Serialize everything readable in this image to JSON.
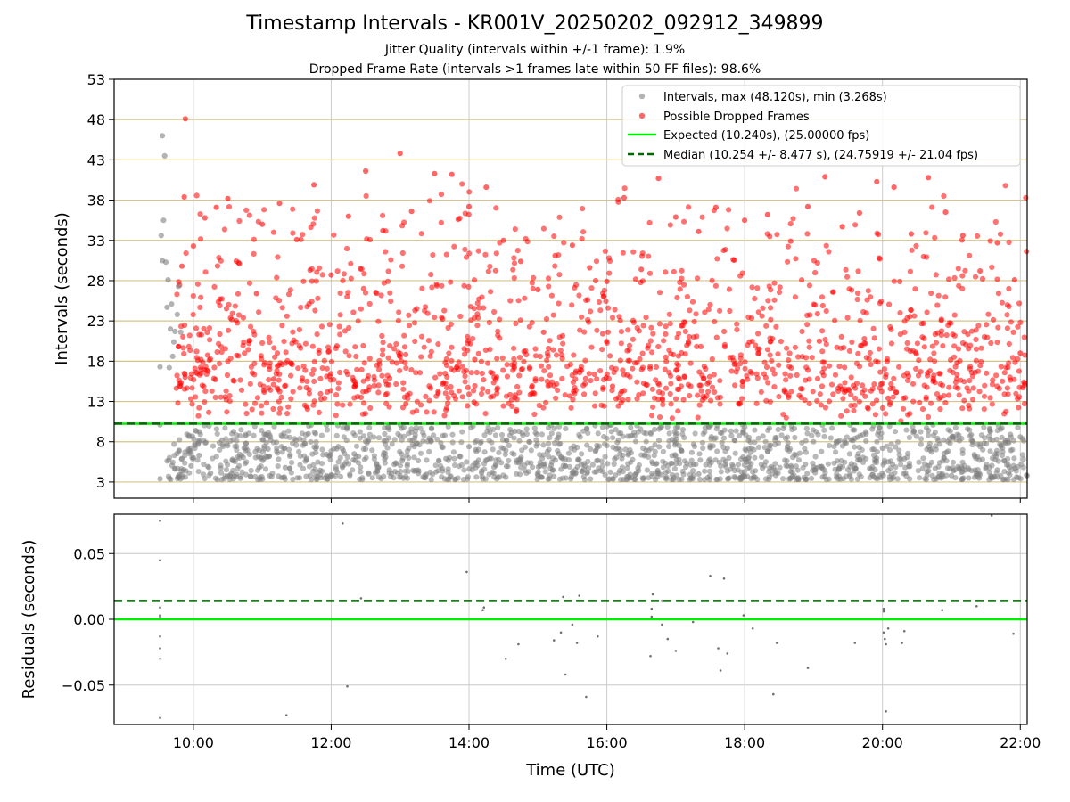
{
  "chart_data": [
    {
      "type": "scatter",
      "title": "Timestamp Intervals - KR001V_20250202_092912_349899",
      "subtitle_1": "Jitter Quality (intervals within +/-1 frame): 1.9%",
      "subtitle_2": "Dropped Frame Rate (intervals >1 frames late within 50 FF files): 98.6%",
      "ylabel": "Intervals (seconds)",
      "xlabel": "Time (UTC)",
      "xlim": [
        "08:51",
        "22:06"
      ],
      "ylim": [
        1,
        53
      ],
      "yticks": [
        "3",
        "8",
        "13",
        "18",
        "23",
        "28",
        "33",
        "38",
        "43",
        "48",
        "53"
      ],
      "xticks": [
        "10:00",
        "12:00",
        "14:00",
        "16:00",
        "18:00",
        "20:00",
        "22:00"
      ],
      "grid": true,
      "legend_position": "upper-right",
      "series": [
        {
          "name": "Intervals, max (48.120s), min (3.268s)",
          "color": "#808080",
          "points": [
            [
              "09:31",
              3.4
            ],
            [
              "09:31",
              10.1
            ],
            [
              "09:31",
              17.3
            ],
            [
              "09:32",
              33.6
            ],
            [
              "09:33",
              46.0
            ],
            [
              "09:33",
              30.5
            ],
            [
              "09:34",
              35.5
            ],
            [
              "09:35",
              43.5
            ],
            [
              "09:36",
              30.3
            ],
            [
              "09:37",
              24.7
            ],
            [
              "09:38",
              28.1
            ],
            [
              "09:39",
              17.2
            ],
            [
              "09:40",
              22.0
            ],
            [
              "09:41",
              25.1
            ],
            [
              "09:42",
              18.6
            ],
            [
              "09:43",
              20.4
            ],
            [
              "09:44",
              21.7
            ],
            [
              "09:46",
              23.8
            ],
            [
              "09:47",
              27.3
            ],
            [
              "09:49",
              21.6
            ],
            [
              "09:50",
              3.9
            ],
            [
              "09:58",
              5.0
            ],
            [
              "10:05",
              6.3
            ],
            [
              "10:15",
              4.1
            ],
            [
              "10:25",
              8.2
            ],
            [
              "10:35",
              5.6
            ],
            [
              "10:50",
              3.7
            ],
            [
              "11:05",
              7.1
            ],
            [
              "11:20",
              4.8
            ],
            [
              "11:40",
              9.0
            ],
            [
              "12:00",
              3.9
            ],
            [
              "12:20",
              6.5
            ],
            [
              "12:40",
              4.4
            ],
            [
              "13:00",
              8.7
            ],
            [
              "13:20",
              3.6
            ],
            [
              "13:40",
              5.9
            ],
            [
              "14:00",
              7.4
            ],
            [
              "14:20",
              4.2
            ],
            [
              "14:40",
              9.3
            ],
            [
              "15:00",
              3.8
            ],
            [
              "15:20",
              6.1
            ],
            [
              "15:40",
              4.6
            ],
            [
              "16:00",
              8.4
            ],
            [
              "16:20",
              3.5
            ],
            [
              "16:40",
              5.3
            ],
            [
              "17:00",
              7.8
            ],
            [
              "17:20",
              4.0
            ],
            [
              "17:40",
              9.1
            ],
            [
              "18:00",
              3.7
            ],
            [
              "18:20",
              6.8
            ],
            [
              "18:40",
              4.3
            ],
            [
              "19:00",
              8.0
            ],
            [
              "19:20",
              3.6
            ],
            [
              "19:40",
              5.7
            ],
            [
              "20:00",
              7.2
            ],
            [
              "20:20",
              4.1
            ],
            [
              "20:40",
              9.4
            ],
            [
              "21:00",
              3.8
            ],
            [
              "21:20",
              6.4
            ],
            [
              "21:40",
              4.5
            ],
            [
              "22:00",
              8.6
            ]
          ]
        },
        {
          "name": "Possible Dropped Frames",
          "color": "#ff0000",
          "points": [
            [
              "09:53",
              48.1
            ],
            [
              "09:50",
              29.8
            ],
            [
              "09:52",
              38.4
            ],
            [
              "10:00",
              32.3
            ],
            [
              "10:10",
              35.8
            ],
            [
              "10:20",
              37.1
            ],
            [
              "10:30",
              38.2
            ],
            [
              "10:40",
              30.1
            ],
            [
              "10:55",
              26.4
            ],
            [
              "11:00",
              35.0
            ],
            [
              "11:15",
              37.6
            ],
            [
              "11:30",
              33.1
            ],
            [
              "11:45",
              39.9
            ],
            [
              "12:00",
              28.7
            ],
            [
              "12:15",
              36.0
            ],
            [
              "12:30",
              41.6
            ],
            [
              "12:45",
              34.2
            ],
            [
              "13:00",
              43.8
            ],
            [
              "13:10",
              36.6
            ],
            [
              "13:30",
              41.3
            ],
            [
              "13:45",
              41.2
            ],
            [
              "14:00",
              37.2
            ],
            [
              "14:15",
              39.6
            ],
            [
              "14:30",
              33.0
            ],
            [
              "14:45",
              30.4
            ],
            [
              "15:00",
              26.9
            ],
            [
              "15:15",
              31.1
            ],
            [
              "15:30",
              32.4
            ],
            [
              "15:45",
              29.6
            ],
            [
              "16:00",
              27.9
            ],
            [
              "16:15",
              38.3
            ],
            [
              "16:30",
              29.4
            ],
            [
              "16:45",
              40.7
            ],
            [
              "17:00",
              35.9
            ],
            [
              "17:20",
              34.1
            ],
            [
              "17:35",
              37.1
            ],
            [
              "17:50",
              30.6
            ],
            [
              "18:00",
              35.5
            ],
            [
              "18:20",
              36.2
            ],
            [
              "18:40",
              32.9
            ],
            [
              "18:55",
              37.2
            ],
            [
              "19:10",
              40.9
            ],
            [
              "19:25",
              34.7
            ],
            [
              "19:40",
              36.4
            ],
            [
              "19:55",
              40.3
            ],
            [
              "20:10",
              39.6
            ],
            [
              "20:25",
              33.8
            ],
            [
              "20:40",
              40.8
            ],
            [
              "20:55",
              36.5
            ],
            [
              "21:10",
              33.6
            ],
            [
              "21:25",
              29.2
            ],
            [
              "21:40",
              32.7
            ],
            [
              "21:55",
              28.1
            ],
            [
              "22:00",
              19.0
            ],
            [
              "10:05",
              21.3
            ],
            [
              "11:10",
              15.8
            ],
            [
              "12:05",
              19.9
            ],
            [
              "13:05",
              12.7
            ],
            [
              "14:05",
              18.2
            ],
            [
              "15:05",
              21.6
            ],
            [
              "16:05",
              14.9
            ],
            [
              "17:05",
              22.4
            ],
            [
              "18:05",
              16.7
            ],
            [
              "19:05",
              20.5
            ],
            [
              "20:05",
              13.4
            ],
            [
              "21:05",
              17.8
            ]
          ]
        }
      ],
      "reference_lines": [
        {
          "name": "Expected (10.240s), (25.00000 fps)",
          "y": 10.24,
          "color": "#00ee00",
          "style": "solid"
        },
        {
          "name": "Median (10.254 +/- 8.477 s), (24.75919 +/- 21.04 fps)",
          "y": 10.254,
          "color": "#006400",
          "style": "dashed"
        }
      ]
    },
    {
      "type": "scatter",
      "ylabel": "Residuals (seconds)",
      "xlabel": "Time (UTC)",
      "xlim": [
        "08:51",
        "22:06"
      ],
      "ylim": [
        -0.08,
        0.08
      ],
      "yticks": [
        "−0.05",
        "0.00",
        "0.05"
      ],
      "xticks": [
        "10:00",
        "12:00",
        "14:00",
        "16:00",
        "18:00",
        "20:00",
        "22:00"
      ],
      "grid": true,
      "series": [
        {
          "name": "",
          "color": "#606060",
          "points": [
            [
              "09:31",
              0.075
            ],
            [
              "09:31",
              0.045
            ],
            [
              "09:31",
              0.009
            ],
            [
              "09:31",
              0.003
            ],
            [
              "09:31",
              0.002
            ],
            [
              "09:31",
              -0.013
            ],
            [
              "09:31",
              -0.022
            ],
            [
              "09:31",
              -0.03
            ],
            [
              "09:31",
              -0.075
            ],
            [
              "11:21",
              -0.073
            ],
            [
              "12:10",
              0.073
            ],
            [
              "12:14",
              -0.051
            ],
            [
              "12:26",
              0.016
            ],
            [
              "13:58",
              0.036
            ],
            [
              "14:13",
              0.009
            ],
            [
              "14:12",
              0.007
            ],
            [
              "14:32",
              -0.03
            ],
            [
              "14:43",
              -0.019
            ],
            [
              "15:14",
              -0.016
            ],
            [
              "15:20",
              -0.01
            ],
            [
              "15:22",
              0.017
            ],
            [
              "15:24",
              -0.042
            ],
            [
              "15:30",
              -0.004
            ],
            [
              "15:34",
              -0.018
            ],
            [
              "15:36",
              0.018
            ],
            [
              "15:42",
              -0.059
            ],
            [
              "15:52",
              -0.013
            ],
            [
              "16:39",
              0.008
            ],
            [
              "16:40",
              0.019
            ],
            [
              "16:39",
              0.002
            ],
            [
              "16:38",
              -0.028
            ],
            [
              "16:48",
              0.014
            ],
            [
              "16:48",
              -0.004
            ],
            [
              "16:53",
              -0.015
            ],
            [
              "17:00",
              -0.024
            ],
            [
              "17:15",
              -0.002
            ],
            [
              "17:30",
              0.033
            ],
            [
              "17:37",
              -0.022
            ],
            [
              "17:39",
              -0.039
            ],
            [
              "17:42",
              0.031
            ],
            [
              "17:45",
              -0.026
            ],
            [
              "17:59",
              0.003
            ],
            [
              "18:07",
              -0.007
            ],
            [
              "18:25",
              -0.057
            ],
            [
              "18:28",
              -0.018
            ],
            [
              "18:55",
              -0.037
            ],
            [
              "19:36",
              -0.018
            ],
            [
              "20:01",
              0.008
            ],
            [
              "20:01",
              0.006
            ],
            [
              "20:01",
              -0.01
            ],
            [
              "20:02",
              -0.015
            ],
            [
              "20:03",
              -0.019
            ],
            [
              "20:03",
              -0.07
            ],
            [
              "20:05",
              -0.007
            ],
            [
              "20:17",
              -0.018
            ],
            [
              "20:19",
              -0.009
            ],
            [
              "20:52",
              0.007
            ],
            [
              "21:22",
              0.01
            ],
            [
              "21:35",
              0.079
            ],
            [
              "21:54",
              -0.011
            ]
          ]
        }
      ],
      "reference_lines": [
        {
          "y": 0.0,
          "color": "#00ee00",
          "style": "solid"
        },
        {
          "y": 0.014,
          "color": "#006400",
          "style": "dashed"
        }
      ]
    }
  ]
}
